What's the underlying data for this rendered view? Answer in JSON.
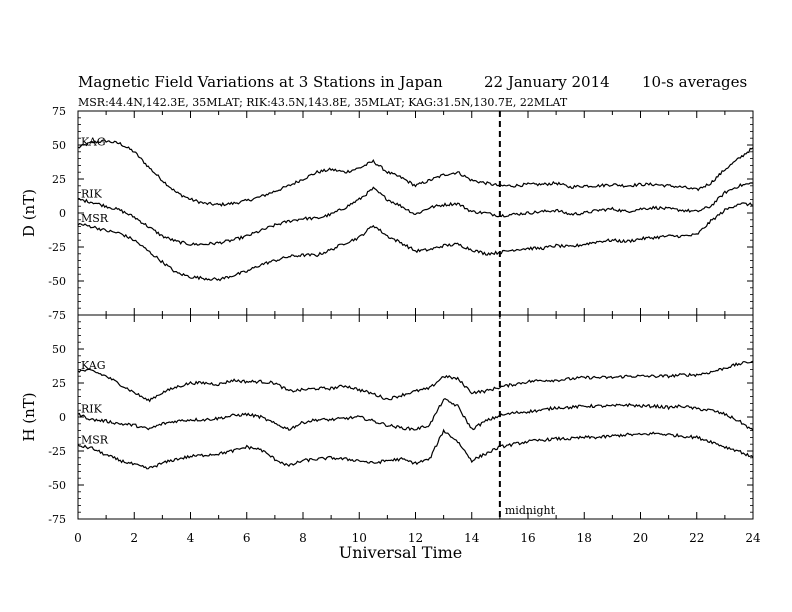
{
  "header": {
    "title": "Magnetic Field Variations at 3 Stations in Japan",
    "date": "22 January 2014",
    "averaging": "10-s averages",
    "stations": "MSR:44.4N,142.3E, 35MLAT;  RIK:43.5N,143.8E, 35MLAT;  KAG:31.5N,130.7E, 22MLAT"
  },
  "chart_data": {
    "type": "line",
    "xlabel": "Universal Time",
    "xlim": [
      0,
      24
    ],
    "xticks": [
      0,
      2,
      4,
      6,
      8,
      10,
      12,
      14,
      16,
      18,
      20,
      22,
      24
    ],
    "vline": {
      "x": 15,
      "style": "dashed",
      "label": "midnight"
    },
    "panels": [
      {
        "id": "D",
        "ylabel": "D (nT)",
        "ylim": [
          -75,
          75
        ],
        "yticks": [
          -75,
          -50,
          -25,
          0,
          25,
          50,
          75
        ],
        "x": [
          0,
          0.5,
          1,
          1.5,
          2,
          2.5,
          3,
          3.5,
          4,
          4.5,
          5,
          5.5,
          6,
          6.5,
          7,
          7.5,
          8,
          8.5,
          9,
          9.5,
          10,
          10.5,
          11,
          11.5,
          12,
          12.5,
          13,
          13.5,
          14,
          14.5,
          15,
          15.5,
          16,
          16.5,
          17,
          17.5,
          18,
          18.5,
          19,
          19.5,
          20,
          20.5,
          21,
          21.5,
          22,
          22.5,
          23,
          23.5,
          24
        ],
        "series": [
          {
            "name": "KAG",
            "values": [
              48,
              52,
              53,
              51,
              45,
              34,
              24,
              15,
              10,
              7,
              6,
              7,
              9,
              12,
              16,
              20,
              25,
              30,
              32,
              30,
              33,
              38,
              30,
              26,
              20,
              24,
              28,
              30,
              24,
              22,
              20,
              20,
              21,
              21,
              22,
              19,
              20,
              20,
              21,
              20,
              21,
              21,
              20,
              19,
              17,
              22,
              32,
              40,
              48
            ]
          },
          {
            "name": "RIK",
            "values": [
              10,
              8,
              5,
              2,
              -3,
              -10,
              -17,
              -21,
              -23,
              -23,
              -22,
              -20,
              -17,
              -13,
              -9,
              -6,
              -4,
              -4,
              -1,
              4,
              10,
              18,
              10,
              5,
              -1,
              4,
              6,
              7,
              1,
              0,
              -2,
              -1,
              0,
              1,
              2,
              -1,
              0,
              2,
              3,
              1,
              3,
              4,
              3,
              2,
              1,
              5,
              15,
              20,
              22
            ]
          },
          {
            "name": "MSR",
            "values": [
              -8,
              -10,
              -13,
              -15,
              -20,
              -28,
              -36,
              -44,
              -47,
              -48,
              -49,
              -46,
              -43,
              -38,
              -35,
              -32,
              -31,
              -31,
              -27,
              -22,
              -18,
              -9,
              -17,
              -22,
              -28,
              -27,
              -24,
              -23,
              -27,
              -30,
              -29,
              -27,
              -26,
              -26,
              -24,
              -25,
              -23,
              -21,
              -20,
              -21,
              -19,
              -18,
              -17,
              -17,
              -16,
              -6,
              2,
              7,
              6
            ]
          }
        ]
      },
      {
        "id": "H",
        "ylabel": "H (nT)",
        "ylim": [
          -75,
          75
        ],
        "yticks": [
          -75,
          -50,
          -25,
          0,
          25,
          50
        ],
        "x": [
          0,
          0.5,
          1,
          1.5,
          2,
          2.5,
          3,
          3.5,
          4,
          4.5,
          5,
          5.5,
          6,
          6.5,
          7,
          7.5,
          8,
          8.5,
          9,
          9.5,
          10,
          10.5,
          11,
          11.5,
          12,
          12.5,
          13,
          13.5,
          14,
          14.5,
          15,
          15.5,
          16,
          16.5,
          17,
          17.5,
          18,
          18.5,
          19,
          19.5,
          20,
          20.5,
          21,
          21.5,
          22,
          22.5,
          23,
          23.5,
          24
        ],
        "series": [
          {
            "name": "KAG",
            "values": [
              34,
              34,
              30,
              24,
              18,
              12,
              18,
              22,
              25,
              25,
              24,
              27,
              26,
              26,
              25,
              19,
              20,
              21,
              21,
              23,
              20,
              17,
              13,
              16,
              19,
              21,
              30,
              28,
              18,
              19,
              22,
              24,
              26,
              27,
              27,
              28,
              29,
              29,
              29,
              30,
              30,
              30,
              30,
              31,
              31,
              33,
              36,
              39,
              41
            ]
          },
          {
            "name": "RIK",
            "values": [
              2,
              -2,
              -3,
              -5,
              -6,
              -9,
              -5,
              -3,
              -2,
              -2,
              -1,
              1,
              2,
              0,
              -5,
              -9,
              -4,
              -2,
              -2,
              -1,
              0,
              -3,
              -6,
              -8,
              -9,
              -6,
              13,
              8,
              -9,
              -3,
              1,
              3,
              4,
              5,
              7,
              7,
              8,
              8,
              8,
              9,
              8,
              8,
              7,
              8,
              6,
              5,
              2,
              -3,
              -10
            ]
          },
          {
            "name": "MSR",
            "values": [
              -21,
              -23,
              -28,
              -32,
              -35,
              -38,
              -34,
              -31,
              -29,
              -28,
              -27,
              -25,
              -22,
              -24,
              -31,
              -36,
              -32,
              -31,
              -30,
              -31,
              -32,
              -34,
              -32,
              -31,
              -34,
              -31,
              -10,
              -18,
              -32,
              -27,
              -22,
              -20,
              -18,
              -17,
              -16,
              -16,
              -15,
              -15,
              -14,
              -13,
              -13,
              -12,
              -13,
              -14,
              -15,
              -18,
              -22,
              -25,
              -30
            ]
          }
        ]
      }
    ]
  }
}
